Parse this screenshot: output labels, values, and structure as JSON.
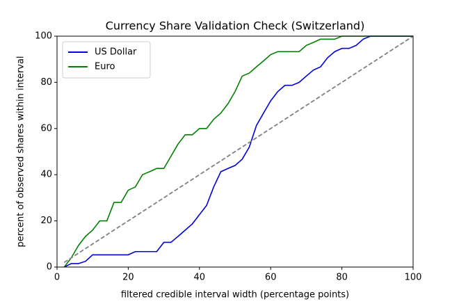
{
  "chart_data": {
    "type": "line",
    "title": "Currency Share Validation Check (Switzerland)",
    "xlabel": "filtered credible interval width (percentage points)",
    "ylabel": "percent of observed shares within interval",
    "x": [
      2,
      4,
      6,
      8,
      10,
      12,
      14,
      16,
      18,
      20,
      22,
      24,
      26,
      28,
      30,
      32,
      34,
      36,
      38,
      40,
      42,
      44,
      46,
      48,
      50,
      52,
      54,
      56,
      58,
      60,
      62,
      64,
      66,
      68,
      70,
      72,
      74,
      76,
      78,
      80,
      82,
      84,
      86,
      88,
      90,
      92,
      94,
      96,
      98,
      100
    ],
    "series": [
      {
        "name": "US Dollar",
        "color": "#0000dd",
        "values": [
          0,
          1.5,
          1.5,
          2.5,
          5.3,
          5.3,
          5.3,
          5.3,
          5.3,
          5.3,
          6.7,
          6.7,
          6.7,
          6.7,
          10.7,
          10.7,
          13.3,
          16,
          18.7,
          22.7,
          26.7,
          34.7,
          41.3,
          42.7,
          44,
          46.7,
          52,
          61.3,
          66.7,
          72,
          76,
          78.7,
          78.7,
          80,
          82.7,
          85.3,
          86.7,
          90.7,
          93.3,
          94.7,
          94.7,
          96,
          98.7,
          100,
          100,
          100,
          100,
          100,
          100,
          100
        ]
      },
      {
        "name": "Euro",
        "color": "#008000",
        "values": [
          0,
          4,
          9.3,
          13.3,
          16,
          20,
          20,
          28,
          28,
          33.3,
          34.7,
          40,
          41.3,
          42.7,
          42.7,
          48,
          53.3,
          57.3,
          57.3,
          60,
          60,
          64,
          66.7,
          70.7,
          76,
          82.7,
          84,
          86.7,
          89.3,
          92,
          93.3,
          93.3,
          93.3,
          93.3,
          96,
          97.3,
          98.7,
          98.7,
          98.7,
          100,
          100,
          100,
          100,
          100,
          100,
          100,
          100,
          100,
          100,
          100
        ]
      },
      {
        "color": "#808080",
        "dashed": true,
        "x": [
          2,
          100
        ],
        "values": [
          2,
          100
        ]
      }
    ],
    "xlim": [
      0,
      100
    ],
    "ylim": [
      0,
      100
    ],
    "xticks": [
      0,
      20,
      40,
      60,
      80,
      100
    ],
    "yticks": [
      0,
      20,
      40,
      60,
      80,
      100
    ],
    "legend": "upper left"
  }
}
